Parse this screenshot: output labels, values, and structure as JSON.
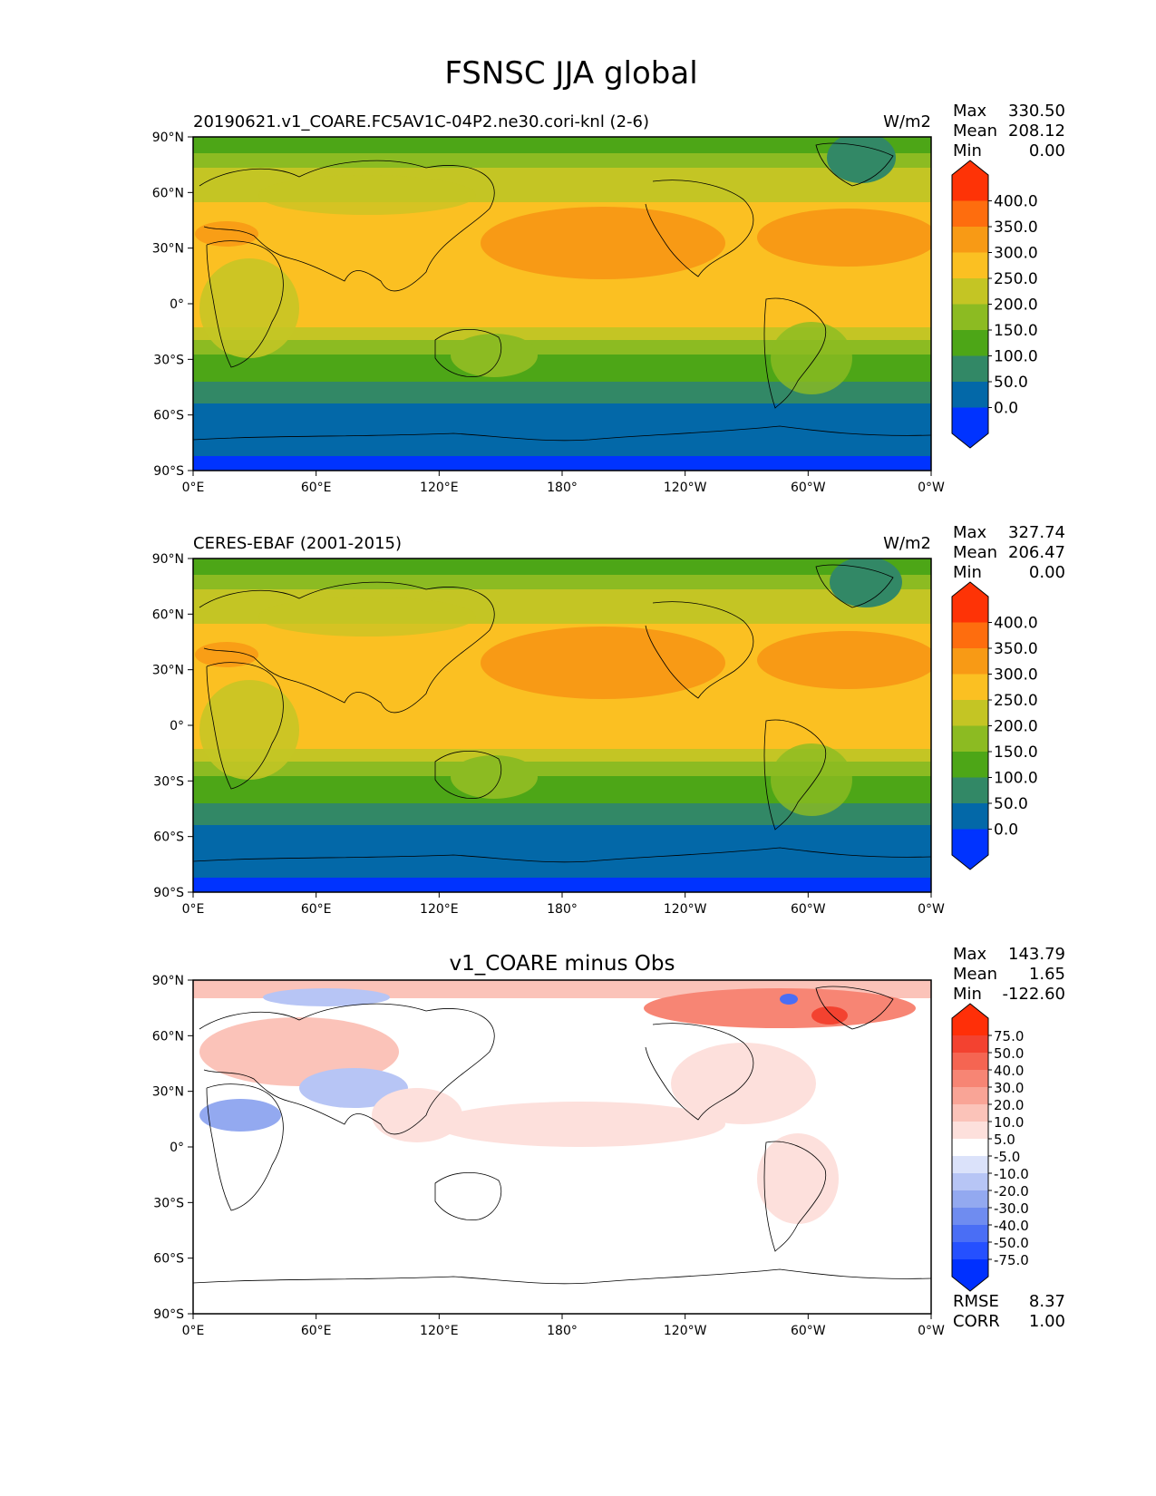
{
  "figure": {
    "title": "FSNSC JJA global"
  },
  "axes": {
    "lat_labels": [
      "90°N",
      "60°N",
      "30°N",
      "0°",
      "30°S",
      "60°S",
      "90°S"
    ],
    "lon_labels": [
      "0°E",
      "60°E",
      "120°E",
      "180°",
      "120°W",
      "60°W",
      "0°W"
    ]
  },
  "panels": [
    {
      "id": "test",
      "left_title": "20190621.v1_COARE.FC5AV1C-04P2.ne30.cori-knl (2-6)",
      "center_title": "",
      "units": "W/m2",
      "stats": [
        {
          "label": "Max",
          "value": "330.50"
        },
        {
          "label": "Mean",
          "value": "208.12"
        },
        {
          "label": "Min",
          "value": "0.00"
        }
      ],
      "colorbar": {
        "colors": [
          "#0033ff",
          "#0368a8",
          "#328866",
          "#4da617",
          "#8cbb22",
          "#c4c524",
          "#fbc022",
          "#f89a15",
          "#fe6d0e",
          "#fe3306"
        ],
        "tick_labels": [
          "0.0",
          "50.0",
          "100.0",
          "150.0",
          "200.0",
          "250.0",
          "300.0",
          "350.0",
          "400.0"
        ]
      }
    },
    {
      "id": "reference",
      "left_title": "CERES-EBAF (2001-2015)",
      "center_title": "",
      "units": "W/m2",
      "stats": [
        {
          "label": "Max",
          "value": "327.74"
        },
        {
          "label": "Mean",
          "value": "206.47"
        },
        {
          "label": "Min",
          "value": "0.00"
        }
      ],
      "colorbar": {
        "colors": [
          "#0033ff",
          "#0368a8",
          "#328866",
          "#4da617",
          "#8cbb22",
          "#c4c524",
          "#fbc022",
          "#f89a15",
          "#fe6d0e",
          "#fe3306"
        ],
        "tick_labels": [
          "0.0",
          "50.0",
          "100.0",
          "150.0",
          "200.0",
          "250.0",
          "300.0",
          "350.0",
          "400.0"
        ]
      }
    },
    {
      "id": "difference",
      "left_title": "",
      "center_title": "v1_COARE minus Obs",
      "units": "",
      "stats": [
        {
          "label": "Max",
          "value": "143.79"
        },
        {
          "label": "Mean",
          "value": "1.65"
        },
        {
          "label": "Min",
          "value": "-122.60"
        }
      ],
      "colorbar": {
        "colors": [
          "#0030ff",
          "#2550ff",
          "#4a6ef5",
          "#6f8cf0",
          "#93a9f0",
          "#b7c5f5",
          "#dbe2fa",
          "#ffffff",
          "#fde0dc",
          "#fbc3b9",
          "#f9a496",
          "#f78574",
          "#f56552",
          "#f34230",
          "#ff2f08"
        ],
        "tick_labels": [
          "-75.0",
          "-50.0",
          "-40.0",
          "-30.0",
          "-20.0",
          "-10.0",
          "-5.0",
          "5.0",
          "10.0",
          "20.0",
          "30.0",
          "40.0",
          "50.0",
          "75.0"
        ]
      },
      "metrics": [
        {
          "label": "RMSE",
          "value": "8.37"
        },
        {
          "label": "CORR",
          "value": "1.00"
        }
      ]
    }
  ]
}
